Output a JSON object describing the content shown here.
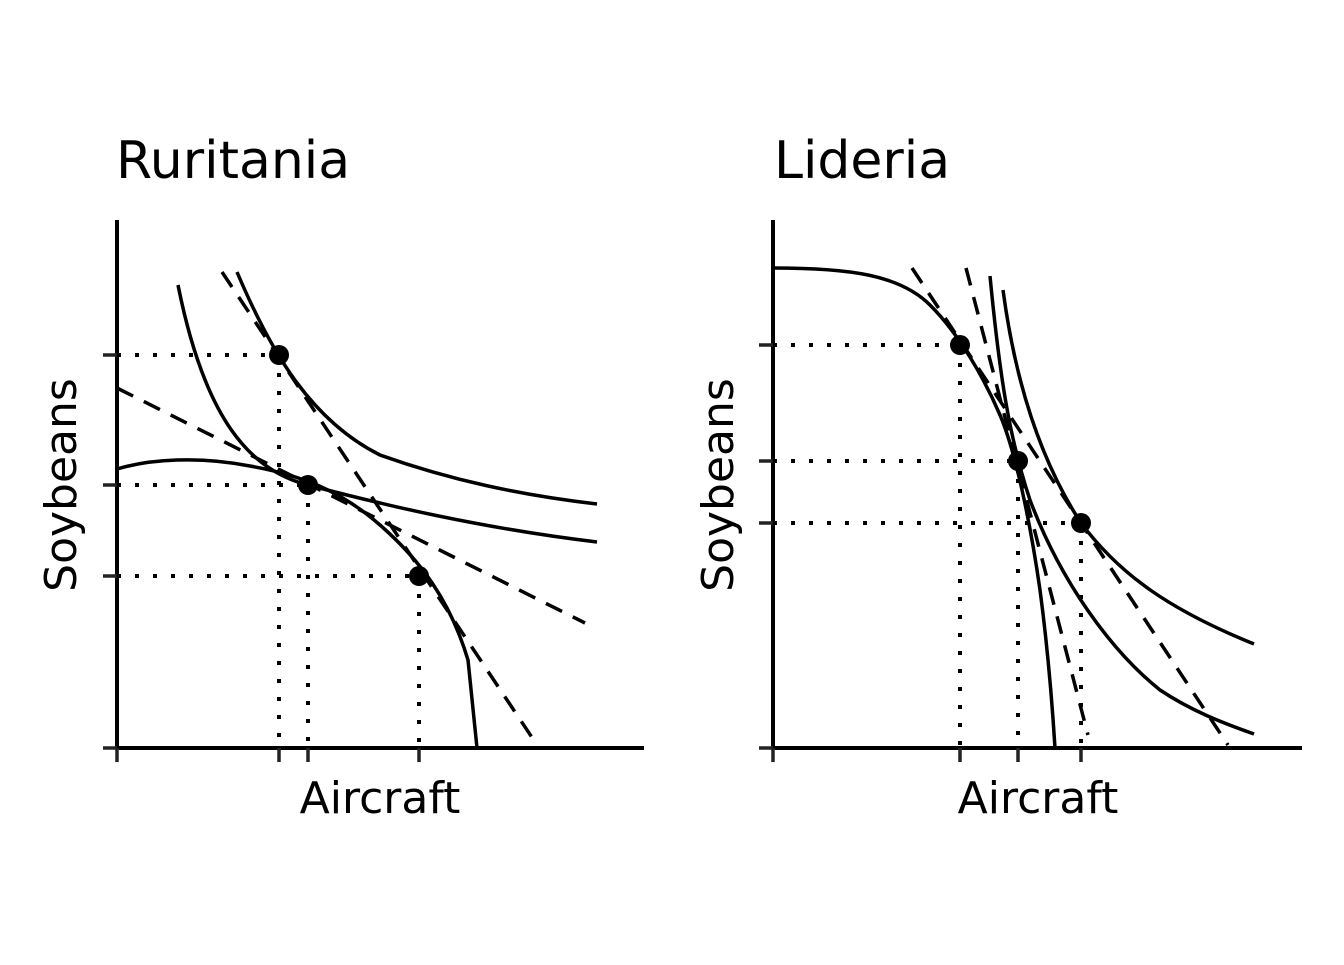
{
  "panels": [
    {
      "id": "ruritania",
      "title": "Ruritania",
      "xlabel": "Aircraft",
      "ylabel": "Soybeans",
      "elements": [
        "production-possibility-frontier",
        "indifference-curve-low",
        "indifference-curve-high",
        "autarky-price-line",
        "trade-price-line",
        "autarky-point",
        "production-point",
        "consumption-point"
      ]
    },
    {
      "id": "lideria",
      "title": "Lideria",
      "xlabel": "Aircraft",
      "ylabel": "Soybeans",
      "elements": [
        "production-possibility-frontier",
        "indifference-curve-low",
        "indifference-curve-high",
        "autarky-price-line",
        "trade-price-line",
        "autarky-point",
        "production-point",
        "consumption-point"
      ]
    }
  ]
}
